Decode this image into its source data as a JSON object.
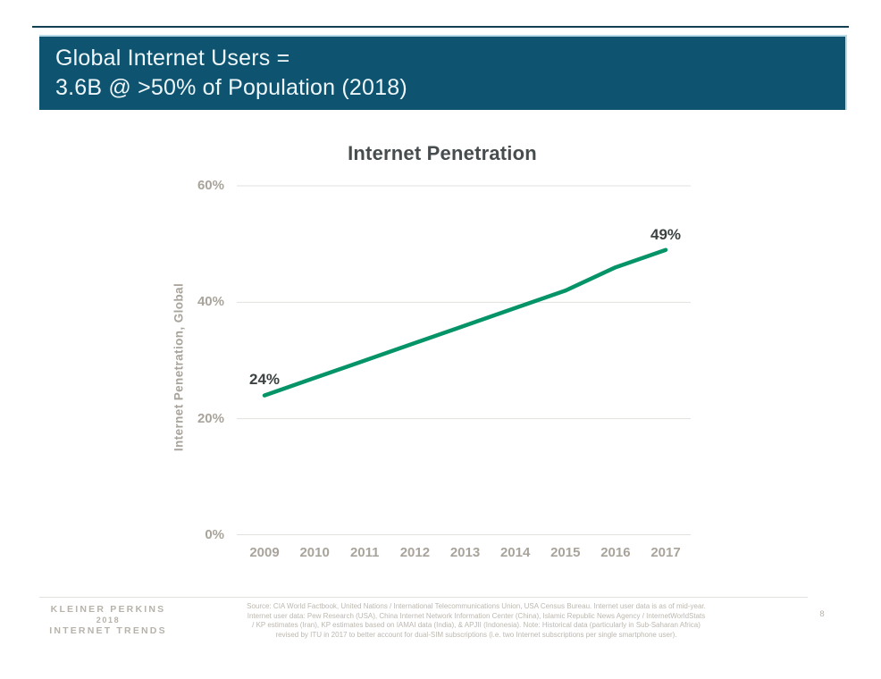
{
  "header": {
    "title_line1": "Global Internet Users =",
    "title_line2": "3.6B @ >50% of Population (2018)"
  },
  "chart_data": {
    "type": "line",
    "title": "Internet Penetration",
    "ylabel": "Internet Penetration, Global",
    "xlabel": "",
    "x": [
      2009,
      2010,
      2011,
      2012,
      2013,
      2014,
      2015,
      2016,
      2017
    ],
    "series": [
      {
        "name": "Internet Penetration, Global",
        "values": [
          24,
          27,
          30,
          33,
          36,
          39,
          42,
          46,
          49
        ],
        "color": "#049467"
      }
    ],
    "ylim": [
      0,
      60
    ],
    "yticks": [
      {
        "value": 60,
        "label": "60%"
      },
      {
        "value": 40,
        "label": "40%"
      },
      {
        "value": 20,
        "label": "20%"
      },
      {
        "value": 0,
        "label": "0%"
      }
    ],
    "grid": true,
    "legend": "none",
    "point_labels": {
      "first": "24%",
      "last": "49%"
    }
  },
  "footer": {
    "logo": {
      "line1": "KLEINER PERKINS",
      "line2": "2018",
      "line3": "INTERNET TRENDS"
    },
    "source_lines": [
      "Source: CIA World Factbook, United Nations / International Telecommunications Union, USA Census Bureau. Internet user data is as of mid-year.",
      "Internet user data: Pew Research (USA), China Internet Network Information Center (China), Islamic Republic News Agency / InternetWorldStats",
      "/ KP estimates (Iran), KP estimates based on IAMAI data (India), & APJII (Indonesia).  Note: Historical data (particularly in Sub-Saharan Africa)",
      "revised by ITU in 2017 to better account for dual-SIM subscriptions (i.e. two Internet subscriptions per single smartphone user)."
    ],
    "page_number": "8"
  },
  "colors": {
    "banner_bg": "#0e5470",
    "banner_text": "#eef6f9",
    "accent_line": "#123f52",
    "banner_edge_highlight": "#b8dbe7",
    "series_green": "#049467",
    "axis_text": "#a9a49b",
    "title_text": "#474c4e",
    "data_label_text": "#3d4243",
    "gridline": "#e3e1dd",
    "footer_text": "#b7b3ab"
  }
}
